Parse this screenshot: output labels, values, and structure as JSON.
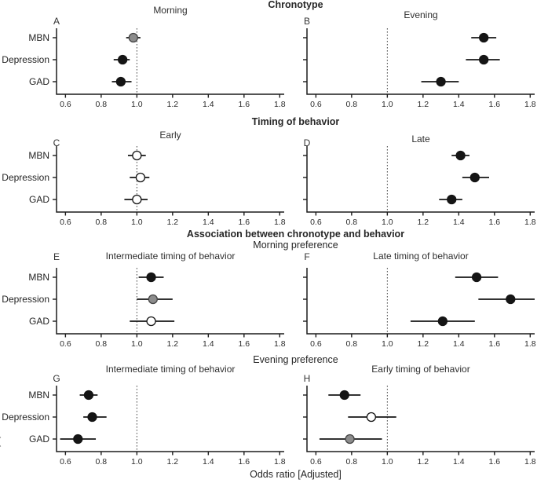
{
  "figure": {
    "xlabel": "Odds ratio [Adjusted]",
    "edge_fragment": "(",
    "categories": [
      "MBN",
      "Depression",
      "GAD"
    ],
    "tick_labels": [
      "0.6",
      "0.8",
      "1.0",
      "1.2",
      "1.4",
      "1.6",
      "1.8"
    ]
  },
  "chart_data": {
    "type": "scatter",
    "subtype": "forest-plot-odds-ratios",
    "xlabel": "Odds ratio [Adjusted]",
    "categories": [
      "MBN",
      "Depression",
      "GAD"
    ],
    "x_ticks": [
      0.6,
      0.8,
      1.0,
      1.2,
      1.4,
      1.6,
      1.8
    ],
    "xlim": [
      0.55,
      1.825
    ],
    "reference_line": 1.0,
    "grid": false,
    "marker_colors": {
      "black": "#151515",
      "gray": "#8c8c8c",
      "white": "#ffffff"
    },
    "sections": [
      {
        "header": "Chronotype",
        "subheader": null,
        "panels": [
          {
            "letter": "A",
            "title": "Morning",
            "points": [
              {
                "category": "MBN",
                "or": 0.98,
                "ci_low": 0.94,
                "ci_high": 1.02,
                "fill": "gray"
              },
              {
                "category": "Depression",
                "or": 0.92,
                "ci_low": 0.87,
                "ci_high": 0.96,
                "fill": "black"
              },
              {
                "category": "GAD",
                "or": 0.91,
                "ci_low": 0.86,
                "ci_high": 0.97,
                "fill": "black"
              }
            ]
          },
          {
            "letter": "B",
            "title": "Evening",
            "points": [
              {
                "category": "MBN",
                "or": 1.54,
                "ci_low": 1.47,
                "ci_high": 1.61,
                "fill": "black"
              },
              {
                "category": "Depression",
                "or": 1.54,
                "ci_low": 1.44,
                "ci_high": 1.63,
                "fill": "black"
              },
              {
                "category": "GAD",
                "or": 1.3,
                "ci_low": 1.19,
                "ci_high": 1.4,
                "fill": "black"
              }
            ]
          }
        ]
      },
      {
        "header": "Timing of behavior",
        "subheader": null,
        "panels": [
          {
            "letter": "C",
            "title": "Early",
            "points": [
              {
                "category": "MBN",
                "or": 1.0,
                "ci_low": 0.95,
                "ci_high": 1.05,
                "fill": "white"
              },
              {
                "category": "Depression",
                "or": 1.02,
                "ci_low": 0.96,
                "ci_high": 1.07,
                "fill": "white"
              },
              {
                "category": "GAD",
                "or": 1.0,
                "ci_low": 0.93,
                "ci_high": 1.06,
                "fill": "white"
              }
            ]
          },
          {
            "letter": "D",
            "title": "Late",
            "points": [
              {
                "category": "MBN",
                "or": 1.41,
                "ci_low": 1.36,
                "ci_high": 1.46,
                "fill": "black"
              },
              {
                "category": "Depression",
                "or": 1.49,
                "ci_low": 1.42,
                "ci_high": 1.57,
                "fill": "black"
              },
              {
                "category": "GAD",
                "or": 1.36,
                "ci_low": 1.29,
                "ci_high": 1.42,
                "fill": "black"
              }
            ]
          }
        ]
      },
      {
        "header": "Association between chronotype and behavior",
        "subheader": "Morning preference",
        "panels": [
          {
            "letter": "E",
            "title": "Intermediate timing of behavior",
            "points": [
              {
                "category": "MBN",
                "or": 1.08,
                "ci_low": 1.01,
                "ci_high": 1.15,
                "fill": "black"
              },
              {
                "category": "Depression",
                "or": 1.09,
                "ci_low": 1.0,
                "ci_high": 1.2,
                "fill": "gray"
              },
              {
                "category": "GAD",
                "or": 1.08,
                "ci_low": 0.96,
                "ci_high": 1.21,
                "fill": "white"
              }
            ]
          },
          {
            "letter": "F",
            "title": "Late timing of behavior",
            "points": [
              {
                "category": "MBN",
                "or": 1.5,
                "ci_low": 1.38,
                "ci_high": 1.62,
                "fill": "black"
              },
              {
                "category": "Depression",
                "or": 1.69,
                "ci_low": 1.51,
                "ci_high": 1.87,
                "fill": "black"
              },
              {
                "category": "GAD",
                "or": 1.31,
                "ci_low": 1.13,
                "ci_high": 1.49,
                "fill": "black"
              }
            ]
          }
        ]
      },
      {
        "header": null,
        "subheader": "Evening preference",
        "panels": [
          {
            "letter": "G",
            "title": "Intermediate timing of behavior",
            "points": [
              {
                "category": "MBN",
                "or": 0.73,
                "ci_low": 0.68,
                "ci_high": 0.78,
                "fill": "black"
              },
              {
                "category": "Depression",
                "or": 0.75,
                "ci_low": 0.7,
                "ci_high": 0.83,
                "fill": "black"
              },
              {
                "category": "GAD",
                "or": 0.67,
                "ci_low": 0.57,
                "ci_high": 0.77,
                "fill": "black"
              }
            ]
          },
          {
            "letter": "H",
            "title": "Early timing of behavior",
            "points": [
              {
                "category": "MBN",
                "or": 0.76,
                "ci_low": 0.67,
                "ci_high": 0.85,
                "fill": "black"
              },
              {
                "category": "Depression",
                "or": 0.91,
                "ci_low": 0.78,
                "ci_high": 1.05,
                "fill": "white"
              },
              {
                "category": "GAD",
                "or": 0.79,
                "ci_low": 0.62,
                "ci_high": 0.97,
                "fill": "gray"
              }
            ]
          }
        ]
      }
    ]
  }
}
